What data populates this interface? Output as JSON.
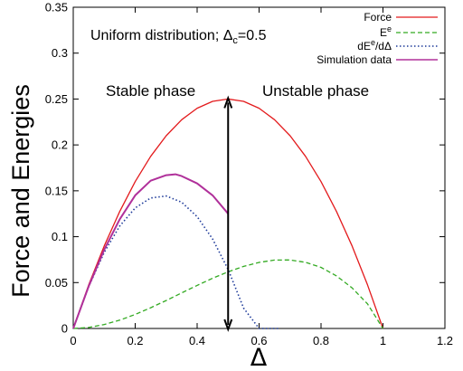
{
  "chart_data": {
    "type": "line",
    "title": "",
    "xlabel": "Δ",
    "ylabel": "Force and Energies",
    "xlim": [
      0,
      1.2
    ],
    "ylim": [
      0,
      0.35
    ],
    "xticks": [
      "0",
      "0.2",
      "0.4",
      "0.6",
      "0.8",
      "1",
      "1.2"
    ],
    "yticks": [
      "0",
      "0.05",
      "0.1",
      "0.15",
      "0.2",
      "0.25",
      "0.3",
      "0.35"
    ],
    "xtick_values": [
      0,
      0.2,
      0.4,
      0.6,
      0.8,
      1.0,
      1.2
    ],
    "ytick_values": [
      0,
      0.05,
      0.1,
      0.15,
      0.2,
      0.25,
      0.3,
      0.35
    ],
    "grid": false,
    "legend_position": "top-right",
    "series": [
      {
        "name": "Force",
        "color": "#e31a1c",
        "style": "solid",
        "x": [
          0,
          0.05,
          0.1,
          0.15,
          0.2,
          0.25,
          0.3,
          0.35,
          0.4,
          0.45,
          0.5,
          0.55,
          0.6,
          0.65,
          0.7,
          0.75,
          0.8,
          0.85,
          0.9,
          0.95,
          1.0
        ],
        "y": [
          0,
          0.0475,
          0.09,
          0.1275,
          0.16,
          0.1875,
          0.21,
          0.2275,
          0.24,
          0.2475,
          0.25,
          0.2475,
          0.24,
          0.2275,
          0.21,
          0.1875,
          0.16,
          0.1275,
          0.09,
          0.0475,
          0
        ]
      },
      {
        "name": "E",
        "label_sup": "e",
        "color": "#33aa22",
        "style": "dashed",
        "x": [
          0,
          0.05,
          0.1,
          0.15,
          0.2,
          0.25,
          0.3,
          0.35,
          0.4,
          0.45,
          0.5,
          0.55,
          0.6,
          0.65,
          0.7,
          0.75,
          0.8,
          0.85,
          0.9,
          0.95,
          1.0
        ],
        "y": [
          0,
          0.0011,
          0.0043,
          0.0091,
          0.0153,
          0.0226,
          0.0305,
          0.0387,
          0.0469,
          0.0547,
          0.0617,
          0.0676,
          0.072,
          0.0745,
          0.0746,
          0.0721,
          0.0665,
          0.0573,
          0.0443,
          0.0268,
          0
        ]
      },
      {
        "name": "dE",
        "label_sup": "e",
        "label_tail": "/dΔ",
        "color": "#1f3b9a",
        "style": "dotted",
        "x": [
          0,
          0.05,
          0.1,
          0.15,
          0.2,
          0.25,
          0.3,
          0.35,
          0.4,
          0.45,
          0.5,
          0.55,
          0.6,
          0.65,
          0.667
        ],
        "y": [
          0,
          0.0456,
          0.083,
          0.1116,
          0.1313,
          0.1422,
          0.1443,
          0.1375,
          0.1219,
          0.0975,
          0.0643,
          0.0222,
          0,
          0,
          0
        ]
      },
      {
        "name": "Simulation data",
        "color": "#b0309a",
        "style": "solid",
        "x": [
          0,
          0.05,
          0.1,
          0.15,
          0.2,
          0.25,
          0.3,
          0.33,
          0.35,
          0.4,
          0.45,
          0.5
        ],
        "y": [
          0,
          0.046,
          0.086,
          0.119,
          0.145,
          0.161,
          0.167,
          0.168,
          0.166,
          0.158,
          0.145,
          0.125
        ]
      }
    ],
    "arrow_x": 0.5,
    "arrow_y_range": [
      0,
      0.25
    ],
    "annotations": {
      "uniform_pre": "Uniform distribution; Δ",
      "uniform_sub": "c",
      "uniform_post": "=0.5",
      "stable": "Stable phase",
      "unstable": "Unstable phase"
    }
  }
}
